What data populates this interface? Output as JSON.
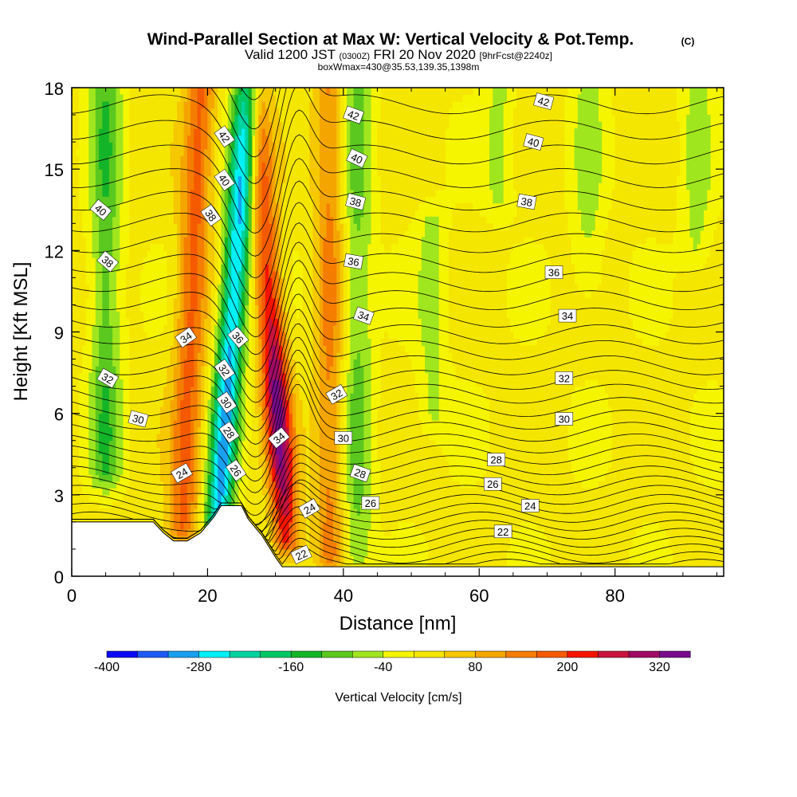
{
  "header": {
    "title": "Wind-Parallel Section at Max W: Vertical Velocity & Pot.Temp.",
    "copyright": "(C)",
    "valid_prefix": "Valid 1200 JST",
    "valid_utc": "(0300Z)",
    "valid_date": "FRI 20 Nov 2020",
    "forecast": "[9hrFcst@2240z]",
    "box_info": "boxWmax=430@35.53,139.35,1398m"
  },
  "chart_data": {
    "type": "heatmap",
    "title": "Wind-Parallel Section at Max W: Vertical Velocity & Pot.Temp.",
    "xlabel": "Distance [nm]",
    "ylabel": "Height [Kft MSL]",
    "xlim": [
      0,
      96
    ],
    "ylim": [
      0,
      18
    ],
    "x_ticks": [
      0,
      20,
      40,
      60,
      80
    ],
    "y_ticks": [
      0,
      3,
      6,
      9,
      12,
      15,
      18
    ],
    "colorbar": {
      "label": "Vertical Velocity [cm/s]",
      "levels": [
        -400,
        -360,
        -320,
        -280,
        -240,
        -200,
        -160,
        -120,
        -80,
        -40,
        0,
        40,
        80,
        120,
        160,
        200,
        240,
        280,
        320,
        360
      ],
      "tick_labels": [
        "-400",
        "-280",
        "-160",
        "-40",
        "80",
        "200",
        "320"
      ],
      "colors": [
        "#0a0af5",
        "#1e5af5",
        "#19a0f0",
        "#00f0f5",
        "#00d2a0",
        "#00c864",
        "#14b428",
        "#5ac81e",
        "#a0e61e",
        "#f5f500",
        "#f5e600",
        "#f5c800",
        "#f5a500",
        "#f57d00",
        "#f55a00",
        "#f51400",
        "#c8143c",
        "#a00a64",
        "#780a8c"
      ]
    },
    "theta_contours": {
      "name": "Pot.Temp.",
      "labels_shown": [
        22,
        24,
        26,
        28,
        30,
        32,
        34,
        36,
        38,
        40,
        42
      ]
    },
    "w_features": [
      {
        "name": "updraft",
        "x": 31,
        "y_bottom": 1.5,
        "y_top": 18,
        "peak": 320
      },
      {
        "name": "downdraft",
        "x": 24,
        "y_bottom": 2,
        "y_top": 18,
        "peak": -300
      },
      {
        "name": "updraft",
        "x": 16,
        "y_bottom": 2,
        "y_top": 18,
        "peak": 160
      },
      {
        "name": "downdraft",
        "x": 5,
        "y_bottom": 4,
        "y_top": 18,
        "peak": -120
      },
      {
        "name": "updraft",
        "x": 38,
        "y_bottom": 1,
        "y_top": 18,
        "peak": 120
      },
      {
        "name": "downdraft",
        "x": 42,
        "y_bottom": 1,
        "y_top": 18,
        "peak": -100
      },
      {
        "name": "downdraft",
        "x": 53,
        "y_bottom": 6,
        "y_top": 13,
        "peak": -60
      },
      {
        "name": "downdraft",
        "x": 63,
        "y_bottom": 14,
        "y_top": 18,
        "peak": -60
      },
      {
        "name": "downdraft",
        "x": 76,
        "y_bottom": 11,
        "y_top": 18,
        "peak": -60
      },
      {
        "name": "downdraft",
        "x": 92,
        "y_bottom": 12,
        "y_top": 18,
        "peak": -60
      }
    ],
    "terrain_profile": {
      "x": [
        0,
        12,
        13.5,
        15,
        17,
        19,
        20,
        21,
        22,
        25,
        26,
        28,
        29,
        30,
        31,
        32,
        34,
        37,
        40,
        96
      ],
      "height": [
        2,
        2,
        1.6,
        1.3,
        1.3,
        1.6,
        1.9,
        2.2,
        2.6,
        2.6,
        2.1,
        1.5,
        1.1,
        0.7,
        0.35,
        0.35,
        0.35,
        0.35,
        0.35,
        0.35
      ]
    },
    "contour_labels": [
      {
        "text": "42",
        "x": 22.5,
        "y": 16.2,
        "angle": 55
      },
      {
        "text": "40",
        "x": 22.5,
        "y": 14.6,
        "angle": 55
      },
      {
        "text": "38",
        "x": 20.5,
        "y": 13.3,
        "angle": 55
      },
      {
        "text": "40",
        "x": 4.3,
        "y": 13.5,
        "angle": 40
      },
      {
        "text": "38",
        "x": 5.3,
        "y": 11.6,
        "angle": 40
      },
      {
        "text": "34",
        "x": 16.8,
        "y": 8.8,
        "angle": -35
      },
      {
        "text": "36",
        "x": 24.5,
        "y": 8.8,
        "angle": 50
      },
      {
        "text": "32",
        "x": 5.3,
        "y": 7.3,
        "angle": 30
      },
      {
        "text": "32",
        "x": 22.5,
        "y": 7.6,
        "angle": 55
      },
      {
        "text": "30",
        "x": 22.8,
        "y": 6.4,
        "angle": 55
      },
      {
        "text": "28",
        "x": 23.2,
        "y": 5.3,
        "angle": 55
      },
      {
        "text": "30",
        "x": 9.8,
        "y": 5.8,
        "angle": 15
      },
      {
        "text": "26",
        "x": 24.2,
        "y": 3.9,
        "angle": 55
      },
      {
        "text": "24",
        "x": 16.2,
        "y": 3.8,
        "angle": -30
      },
      {
        "text": "34",
        "x": 30.5,
        "y": 5.1,
        "angle": -40
      },
      {
        "text": "42",
        "x": 41.5,
        "y": 17.0,
        "angle": 20
      },
      {
        "text": "40",
        "x": 42.0,
        "y": 15.4,
        "angle": 25
      },
      {
        "text": "38",
        "x": 41.8,
        "y": 13.8,
        "angle": 15
      },
      {
        "text": "36",
        "x": 41.5,
        "y": 11.6,
        "angle": 10
      },
      {
        "text": "34",
        "x": 43.0,
        "y": 9.6,
        "angle": 20
      },
      {
        "text": "32",
        "x": 39.0,
        "y": 6.7,
        "angle": -30
      },
      {
        "text": "30",
        "x": 40.0,
        "y": 5.1,
        "angle": 0
      },
      {
        "text": "28",
        "x": 42.5,
        "y": 3.8,
        "angle": 20
      },
      {
        "text": "26",
        "x": 44.0,
        "y": 2.7,
        "angle": 0
      },
      {
        "text": "24",
        "x": 35.0,
        "y": 2.5,
        "angle": -30
      },
      {
        "text": "22",
        "x": 33.8,
        "y": 0.8,
        "angle": -25
      },
      {
        "text": "42",
        "x": 69.5,
        "y": 17.5,
        "angle": 15
      },
      {
        "text": "40",
        "x": 68.0,
        "y": 16.0,
        "angle": 15
      },
      {
        "text": "38",
        "x": 67.0,
        "y": 13.8,
        "angle": 10
      },
      {
        "text": "36",
        "x": 71.0,
        "y": 11.2,
        "angle": 0
      },
      {
        "text": "34",
        "x": 73.0,
        "y": 9.6,
        "angle": 0
      },
      {
        "text": "32",
        "x": 72.5,
        "y": 7.3,
        "angle": 0
      },
      {
        "text": "30",
        "x": 72.5,
        "y": 5.8,
        "angle": 0
      },
      {
        "text": "28",
        "x": 62.5,
        "y": 4.3,
        "angle": 0
      },
      {
        "text": "26",
        "x": 62.0,
        "y": 3.4,
        "angle": 0
      },
      {
        "text": "24",
        "x": 67.5,
        "y": 2.6,
        "angle": 0
      },
      {
        "text": "22",
        "x": 63.5,
        "y": 1.65,
        "angle": 0
      }
    ]
  }
}
